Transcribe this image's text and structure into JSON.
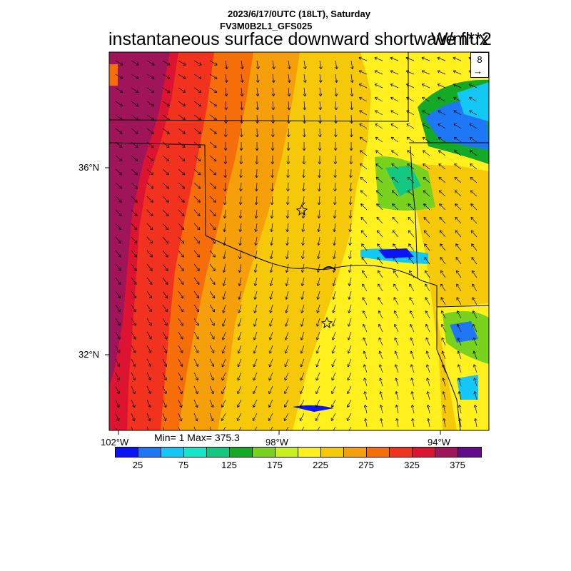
{
  "header": {
    "line1": "2023/6/17/0UTC (18LT), Saturday",
    "line2": "FV3M0B2L1_GFS025",
    "main_title": "instantaneous surface downward shortwave flux",
    "units": "W/m**2"
  },
  "vector_legend": {
    "value": "8",
    "arrow": "→"
  },
  "axes": {
    "lat_labels": [
      "36°N",
      "32°N"
    ],
    "lon_labels": [
      "102°W",
      "98°W",
      "94°W"
    ]
  },
  "stats": "Min= 1 Max= 375.3",
  "colorbar": {
    "colors": [
      "#0a14f5",
      "#1e78f5",
      "#14c8f5",
      "#14e6c8",
      "#14c882",
      "#14aa28",
      "#78d21e",
      "#c8f01e",
      "#fff01e",
      "#f5c80a",
      "#f5a00a",
      "#f56e0a",
      "#f0321e",
      "#dc1432",
      "#a0145a",
      "#640a8c"
    ],
    "labels": [
      "25",
      "75",
      "125",
      "175",
      "225",
      "275",
      "325",
      "375"
    ]
  },
  "map": {
    "region": "Oklahoma / Texas",
    "variable_range": [
      1,
      375.3
    ]
  }
}
